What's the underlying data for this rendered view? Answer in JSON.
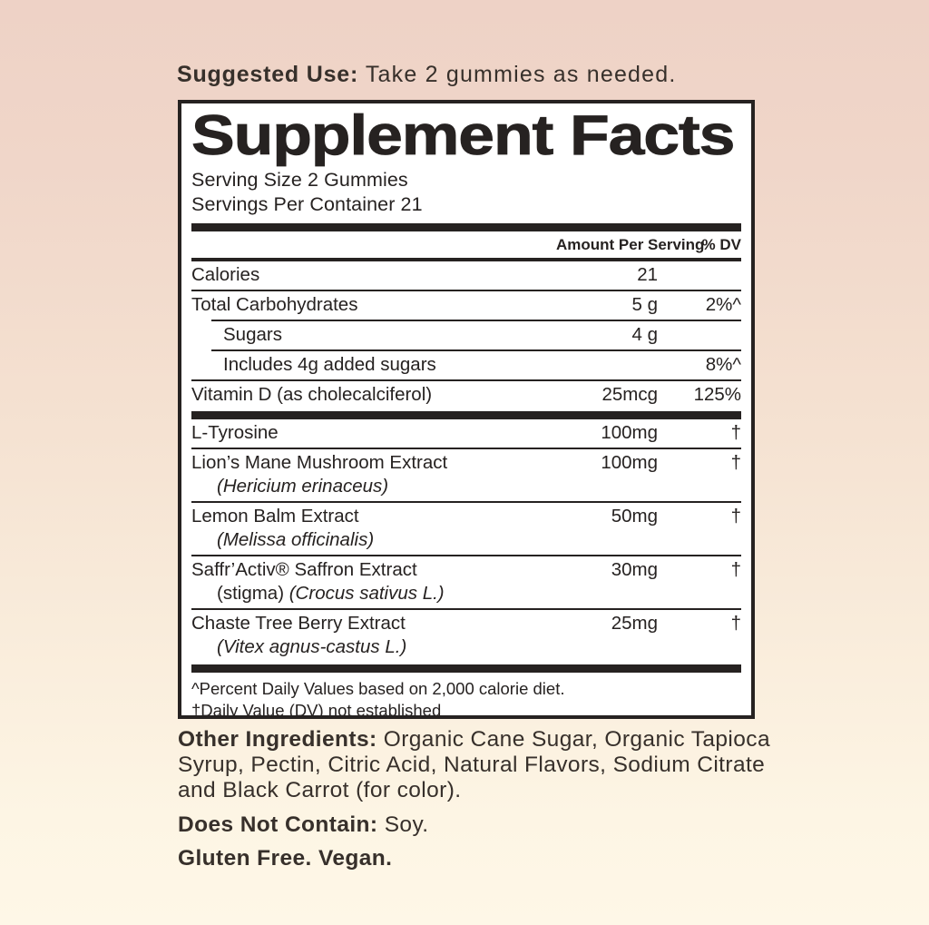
{
  "colors": {
    "ink": "#262221",
    "outer_text": "#37302b",
    "bg_top": "#eed2c6",
    "bg_bottom": "#fef7e7",
    "panel_bg": "#ffffff"
  },
  "suggested_use": {
    "label": "Suggested Use:",
    "text": " Take 2 gummies as needed."
  },
  "facts": {
    "title": "Supplement Facts",
    "serving_size": "Serving Size 2 Gummies",
    "servings_per_container": "Servings Per Container 21",
    "col_amount": "Amount Per Serving",
    "col_dv": "% DV",
    "rows_main": [
      {
        "name": "Calories",
        "amount": "21",
        "dv": "",
        "divider": "none"
      },
      {
        "name": "Total Carbohydrates",
        "amount": "5 g",
        "dv": "2%^",
        "divider": "full"
      },
      {
        "name": "Sugars",
        "amount": "4 g",
        "dv": "",
        "divider": "indent"
      },
      {
        "name": "Includes 4g added sugars",
        "amount": "",
        "dv": "8%^",
        "divider": "indent"
      },
      {
        "name": "Vitamin D (as cholecalciferol)",
        "amount": "25mcg",
        "dv": "125%",
        "divider": "full"
      }
    ],
    "rows_botanical": [
      {
        "name": "L-Tyrosine",
        "sub_plain": "",
        "sub_italic": "",
        "amount": "100mg",
        "dv": "†",
        "divider": "none"
      },
      {
        "name": "Lion’s Mane Mushroom Extract",
        "sub_plain": "",
        "sub_italic": "(Hericium erinaceus)",
        "amount": "100mg",
        "dv": "†",
        "divider": "full"
      },
      {
        "name": "Lemon Balm Extract",
        "sub_plain": "",
        "sub_italic": "(Melissa officinalis)",
        "amount": "50mg",
        "dv": "†",
        "divider": "full"
      },
      {
        "name": "Saffr’Activ® Saffron Extract",
        "sub_plain": "(stigma) ",
        "sub_italic": "(Crocus sativus L.)",
        "amount": "30mg",
        "dv": "†",
        "divider": "full"
      },
      {
        "name": "Chaste Tree Berry Extract",
        "sub_plain": "",
        "sub_italic": "(Vitex agnus-castus L.)",
        "amount": "25mg",
        "dv": "†",
        "divider": "full"
      }
    ],
    "footnotes": [
      "^Percent Daily Values based on 2,000 calorie diet.",
      "†Daily Value (DV) not established"
    ]
  },
  "bottom": {
    "other_ingredients_label": "Other Ingredients:",
    "other_ingredients_text": " Organic Cane Sugar, Organic Tapioca Syrup, Pectin, Citric Acid, Natural Flavors, Sodium Citrate and Black Carrot (for color).",
    "does_not_contain_label": "Does Not Contain:",
    "does_not_contain_text": " Soy.",
    "gluten_free_vegan": "Gluten Free. Vegan."
  }
}
